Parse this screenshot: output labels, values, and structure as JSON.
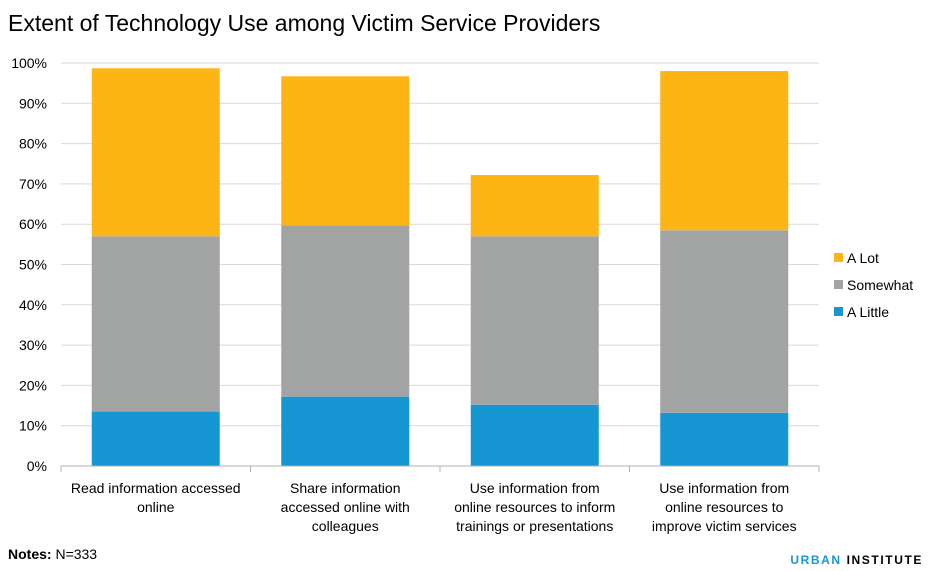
{
  "chart_data": {
    "type": "bar",
    "stacked": true,
    "title": "Extent of Technology Use among Victim Service Providers",
    "xlabel": "",
    "ylabel": "",
    "ylim": [
      0,
      100
    ],
    "ytick_labels": [
      "0%",
      "10%",
      "20%",
      "30%",
      "40%",
      "50%",
      "60%",
      "70%",
      "80%",
      "90%",
      "100%"
    ],
    "grid": true,
    "legend_position": "right",
    "categories": [
      [
        "Read information accessed",
        "online"
      ],
      [
        "Share information",
        "accessed online with",
        "colleagues"
      ],
      [
        "Use information from",
        "online resources to inform",
        "trainings or presentations"
      ],
      [
        "Use information from",
        "online resources to",
        "improve victim services"
      ]
    ],
    "series": [
      {
        "name": "A Little",
        "color": "#1696d2",
        "values": [
          13.5,
          17.2,
          15.2,
          13.2
        ]
      },
      {
        "name": "Somewhat",
        "color": "#a2a4a3",
        "values": [
          43.5,
          42.5,
          41.8,
          45.3
        ]
      },
      {
        "name": "A Lot",
        "color": "#fdb515",
        "values": [
          41.7,
          37.0,
          15.2,
          39.5
        ]
      }
    ],
    "legend_order": [
      "A Lot",
      "Somewhat",
      "A Little"
    ]
  },
  "notes": {
    "label": "Notes:",
    "text": " N=333"
  },
  "brand": {
    "part1": "URBAN",
    "part2": " INSTITUTE"
  },
  "colors": {
    "grid": "#d9d9d9",
    "axis": "#b0b0b0"
  }
}
